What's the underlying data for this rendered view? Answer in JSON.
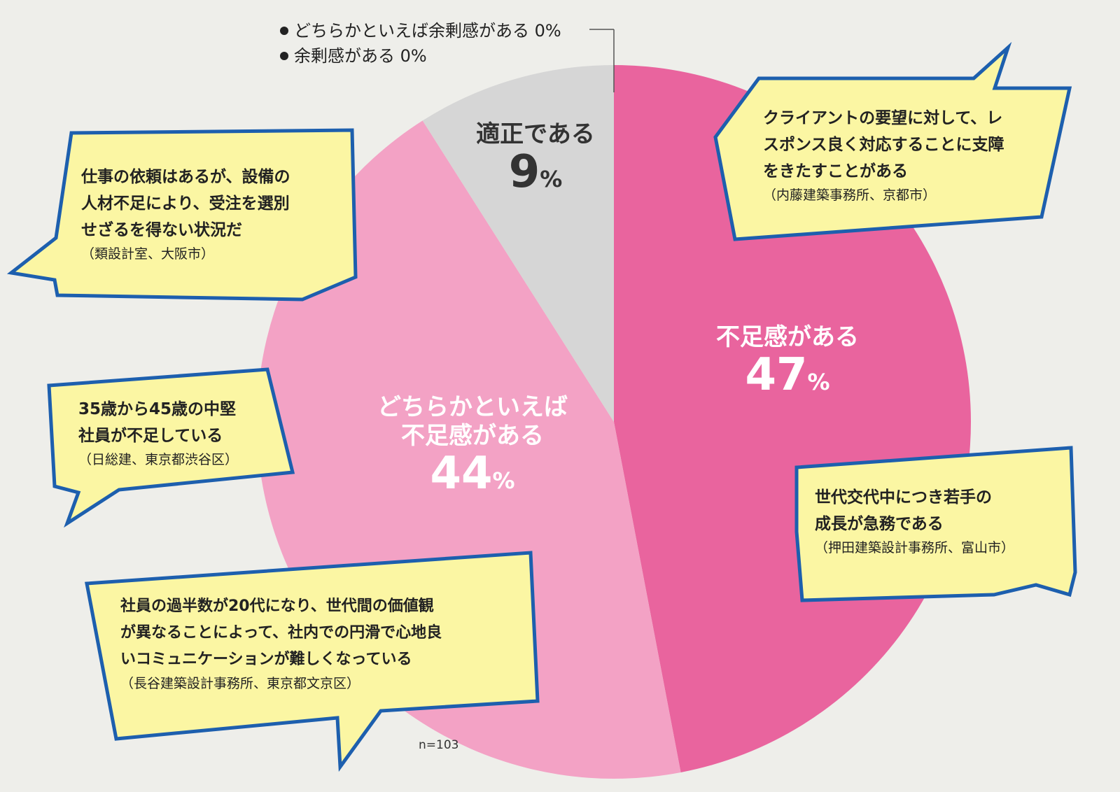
{
  "chart_data": {
    "type": "pie",
    "slices": [
      {
        "label": "不足感がある",
        "value": 47,
        "color": "#e9649e"
      },
      {
        "label": "どちらかといえば不足感がある",
        "label_lines": [
          "どちらかといえば",
          "不足感がある"
        ],
        "value": 44,
        "color": "#f3a2c5"
      },
      {
        "label": "適正である",
        "value": 9,
        "color": "#d6d6d6"
      },
      {
        "label": "どちらかといえば余剰感がある",
        "value": 0,
        "color": "#ffffff"
      },
      {
        "label": "余剰感がある",
        "value": 0,
        "color": "#ffffff"
      }
    ],
    "pct_suffix": "%",
    "legend": [
      "どちらかといえば余剰感がある 0%",
      "余剰感がある 0%"
    ],
    "note": "n=103"
  },
  "bubbles": [
    {
      "lines": [
        "クライアントの要望に対して、レ",
        "スポンス良く対応することに支障",
        "をきたすことがある"
      ],
      "source": "（内藤建築事務所、京都市）"
    },
    {
      "lines": [
        "仕事の依頼はあるが、設備の",
        "人材不足により、受注を選別",
        "せざるを得ない状況だ"
      ],
      "source": "（類設計室、大阪市）"
    },
    {
      "lines": [
        "35歳から45歳の中堅",
        "社員が不足している"
      ],
      "source": "（日総建、東京都渋谷区）"
    },
    {
      "lines": [
        "世代交代中につき若手の",
        "成長が急務である"
      ],
      "source": "（押田建築設計事務所、富山市）"
    },
    {
      "lines": [
        "社員の過半数が20代になり、世代間の価値観",
        "が異なることによって、社内での円滑で心地良",
        "いコミュニケーションが難しくなっている"
      ],
      "source": "（長谷建築設計事務所、東京都文京区）"
    }
  ],
  "colors": {
    "bubble_fill": "#fbf6a3",
    "bubble_border": "#1d5fae"
  }
}
